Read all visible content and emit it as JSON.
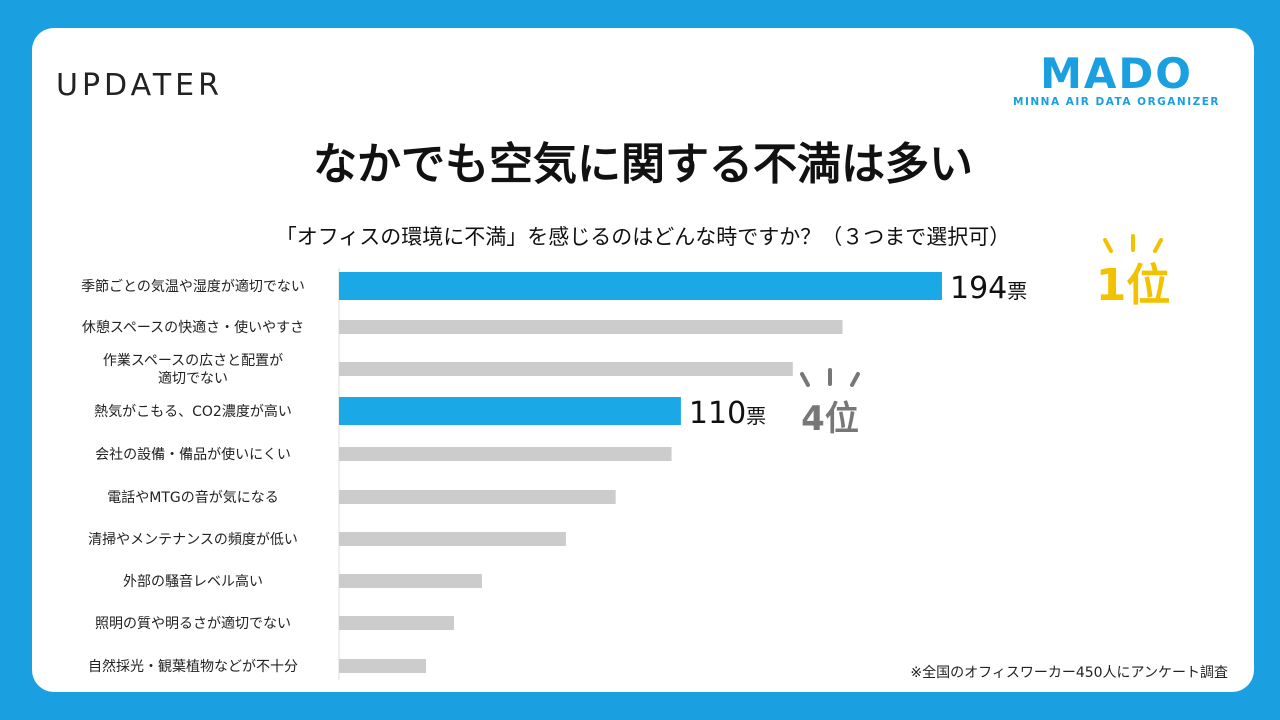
{
  "brand_left": "UPDATER",
  "brand_right": {
    "mark": "MADO",
    "sub": "MINNA AIR DATA ORGANIZER"
  },
  "title": "なかでも空気に関する不満は多い",
  "subtitle": "「オフィスの環境に不満」を感じるのはどんな時ですか？（３つまで選択可）",
  "note": "※全国のオフィスワーカー450人にアンケート調査",
  "colors": {
    "highlight": "#1aa8e6",
    "bar": "#cccccc",
    "gold": "#f2c200",
    "gray_rank": "#777777"
  },
  "chart_data": {
    "type": "bar",
    "orientation": "horizontal",
    "categories": [
      "季節ごとの気温や湿度が適切でない",
      "休憩スペースの快適さ・使いやすさ",
      "作業スペースの広さと配置が\n適切でない",
      "熱気がこもる、CO2濃度が高い",
      "会社の設備・備品が使いにくい",
      "電話やMTGの音が気になる",
      "清掃やメンテナンスの頻度が低い",
      "外部の騒音レベル高い",
      "照明の質や明るさが適切でない",
      "自然採光・観葉植物などが不十分"
    ],
    "values": [
      194,
      162,
      146,
      110,
      107,
      89,
      73,
      46,
      37,
      28
    ],
    "highlighted": [
      0,
      3
    ],
    "data_labels": [
      {
        "index": 0,
        "value": "194",
        "unit": "票"
      },
      {
        "index": 3,
        "value": "110",
        "unit": "票"
      }
    ],
    "ranks": [
      {
        "index": 0,
        "text": "1位"
      },
      {
        "index": 3,
        "text": "4位"
      }
    ],
    "xlim": [
      0,
      210
    ]
  }
}
